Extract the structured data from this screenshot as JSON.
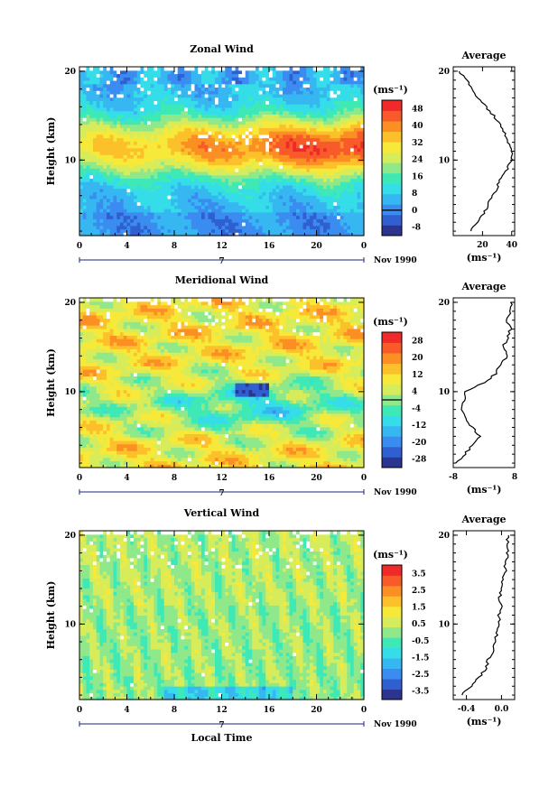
{
  "colors": [
    "#2b3590",
    "#2f5fd0",
    "#3a8cf0",
    "#37b7f2",
    "#34dde8",
    "#3fe9b6",
    "#8fe88a",
    "#d6ec5a",
    "#f6e93a",
    "#fcc02a",
    "#fc8f24",
    "#f85a2a",
    "#f02a2a"
  ],
  "chart_data": [
    {
      "type": "heatmap",
      "title": "Zonal Wind",
      "xlabel": "",
      "ylabel": "Height (km)",
      "x_ticks": [
        "0",
        "4",
        "8",
        "12",
        "16",
        "20",
        "0"
      ],
      "y_ticks": [
        "10",
        "20"
      ],
      "xlim": [
        0,
        24
      ],
      "ylim": [
        1.5,
        20.5
      ],
      "date_label": "Nov 1990",
      "day_label": "7",
      "units": "(ms⁻¹)",
      "colorbar_ticks": [
        "-8",
        "0",
        "8",
        "16",
        "24",
        "32",
        "40",
        "48"
      ],
      "colorbar_range": [
        -12,
        52
      ],
      "zero_line": 0,
      "average": {
        "title": "Average",
        "x_ticks": [
          "20",
          "40"
        ],
        "xlim": [
          0,
          42
        ],
        "ylim": [
          1.5,
          20.5
        ],
        "xlabel": "(ms⁻¹)",
        "profile": [
          [
            2,
            12
          ],
          [
            3,
            16
          ],
          [
            4,
            21
          ],
          [
            5,
            24
          ],
          [
            6,
            27
          ],
          [
            7,
            30
          ],
          [
            8,
            33
          ],
          [
            9,
            37
          ],
          [
            10,
            40
          ],
          [
            11,
            40
          ],
          [
            12,
            38
          ],
          [
            13,
            35
          ],
          [
            14,
            32
          ],
          [
            15,
            28
          ],
          [
            16,
            22
          ],
          [
            17,
            17
          ],
          [
            18,
            13
          ],
          [
            19,
            9
          ],
          [
            20,
            4
          ]
        ]
      }
    },
    {
      "type": "heatmap",
      "title": "Meridional Wind",
      "xlabel": "",
      "ylabel": "Height (km)",
      "x_ticks": [
        "0",
        "4",
        "8",
        "12",
        "16",
        "20",
        "0"
      ],
      "y_ticks": [
        "10",
        "20"
      ],
      "xlim": [
        0,
        24
      ],
      "ylim": [
        1.5,
        20.5
      ],
      "date_label": "Nov 1990",
      "day_label": "7",
      "units": "(ms⁻¹)",
      "colorbar_ticks": [
        "-28",
        "-20",
        "-12",
        "-4",
        "4",
        "12",
        "20",
        "28"
      ],
      "colorbar_range": [
        -32,
        32
      ],
      "zero_line": 0,
      "average": {
        "title": "Average",
        "x_ticks": [
          "-8",
          "8"
        ],
        "xlim": [
          -8,
          8
        ],
        "ylim": [
          1.5,
          20.5
        ],
        "xlabel": "(ms⁻¹)",
        "profile": [
          [
            2,
            -7
          ],
          [
            3,
            -5
          ],
          [
            4,
            -3
          ],
          [
            5,
            -1
          ],
          [
            6,
            -3
          ],
          [
            7,
            -5
          ],
          [
            8,
            -6
          ],
          [
            9,
            -5
          ],
          [
            10,
            -5
          ],
          [
            11,
            0
          ],
          [
            12,
            3
          ],
          [
            13,
            4
          ],
          [
            14,
            6
          ],
          [
            15,
            5
          ],
          [
            16,
            6
          ],
          [
            17,
            7
          ],
          [
            18,
            6
          ],
          [
            19,
            7
          ],
          [
            20,
            7
          ]
        ]
      }
    },
    {
      "type": "heatmap",
      "title": "Vertical Wind",
      "xlabel": "Local Time",
      "ylabel": "Height (km)",
      "x_ticks": [
        "0",
        "4",
        "8",
        "12",
        "16",
        "20",
        "0"
      ],
      "y_ticks": [
        "10",
        "20"
      ],
      "xlim": [
        0,
        24
      ],
      "ylim": [
        1.5,
        20.5
      ],
      "date_label": "Nov 1990",
      "day_label": "7",
      "units": "(ms⁻¹)",
      "colorbar_ticks": [
        "-3.5",
        "-2.5",
        "-1.5",
        "-0.5",
        "0.5",
        "1.5",
        "2.5",
        "3.5"
      ],
      "colorbar_range": [
        -4,
        4
      ],
      "zero_line": null,
      "average": {
        "title": "Average",
        "x_ticks": [
          "-0.4",
          "0.0"
        ],
        "xlim": [
          -0.55,
          0.15
        ],
        "ylim": [
          1.5,
          20.5
        ],
        "xlabel": "(ms⁻¹)",
        "profile": [
          [
            2,
            -0.45
          ],
          [
            3,
            -0.35
          ],
          [
            4,
            -0.25
          ],
          [
            5,
            -0.18
          ],
          [
            6,
            -0.15
          ],
          [
            7,
            -0.1
          ],
          [
            8,
            -0.08
          ],
          [
            9,
            -0.05
          ],
          [
            10,
            -0.02
          ],
          [
            11,
            -0.03
          ],
          [
            12,
            0.0
          ],
          [
            13,
            -0.02
          ],
          [
            14,
            0.0
          ],
          [
            15,
            0.02
          ],
          [
            16,
            0.04
          ],
          [
            17,
            0.05
          ],
          [
            18,
            0.07
          ],
          [
            19,
            0.06
          ],
          [
            20,
            0.08
          ]
        ]
      }
    }
  ]
}
